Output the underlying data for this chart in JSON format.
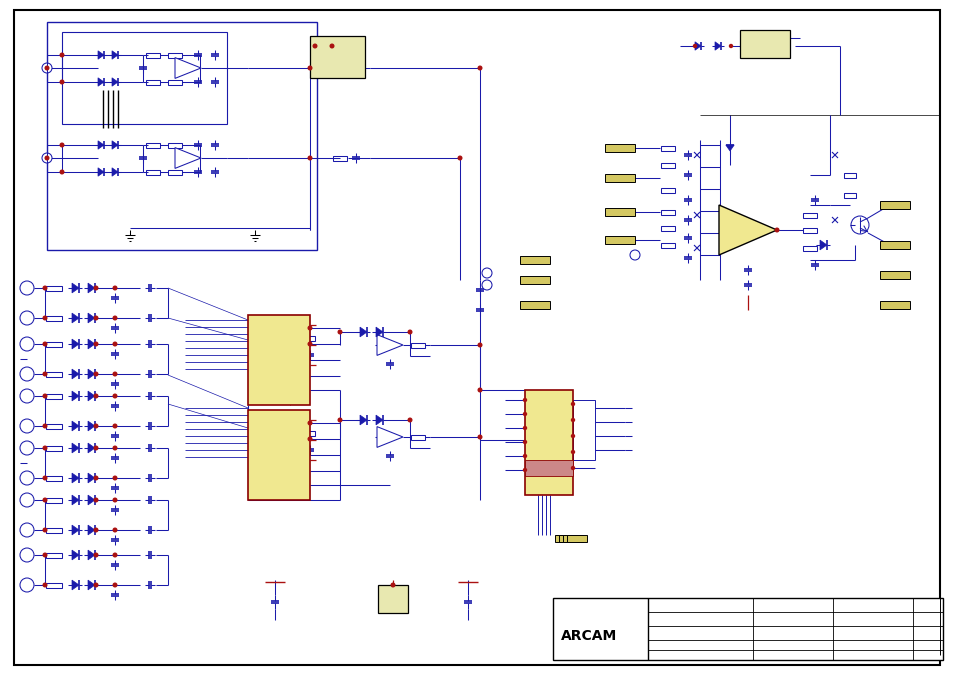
{
  "bg": "#ffffff",
  "lc": "#1a1aaa",
  "dc": "#000000",
  "rc": "#aa1111",
  "yc": "#d4c862",
  "ic_fc": "#f0e890",
  "ic_ec": "#8b0000"
}
